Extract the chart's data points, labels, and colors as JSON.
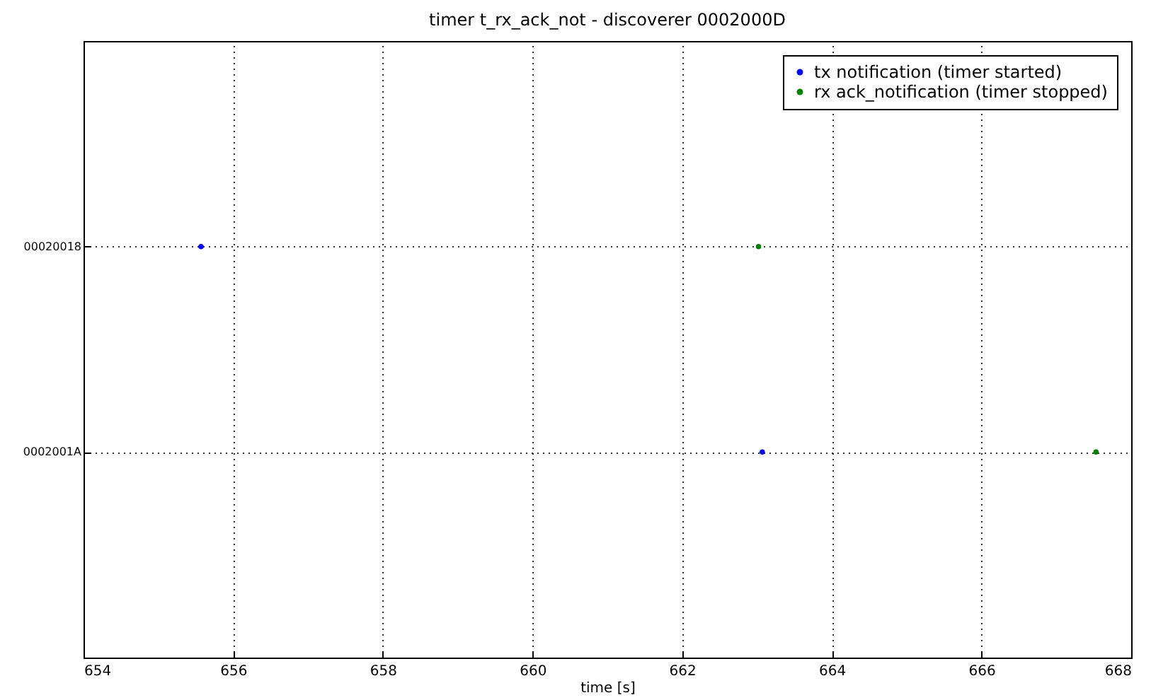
{
  "chart_data": {
    "type": "scatter",
    "orientation": "horizontal",
    "title": "timer t_rx_ack_not   -   discoverer 0002000D",
    "xlabel": "time [s]",
    "xlim": [
      654,
      668
    ],
    "xticks": [
      654,
      656,
      658,
      660,
      662,
      664,
      666,
      668
    ],
    "categories": [
      "00020018",
      "0002001A"
    ],
    "series": [
      {
        "name": "tx notification (timer started)",
        "color": "#0000ff",
        "values": [
          655.57,
          663.07
        ]
      },
      {
        "name": "rx ack_notification (timer stopped)",
        "color": "#008000",
        "values": [
          663.02,
          667.53
        ]
      }
    ],
    "grid": true,
    "legend": "top right",
    "marker": "circle"
  }
}
